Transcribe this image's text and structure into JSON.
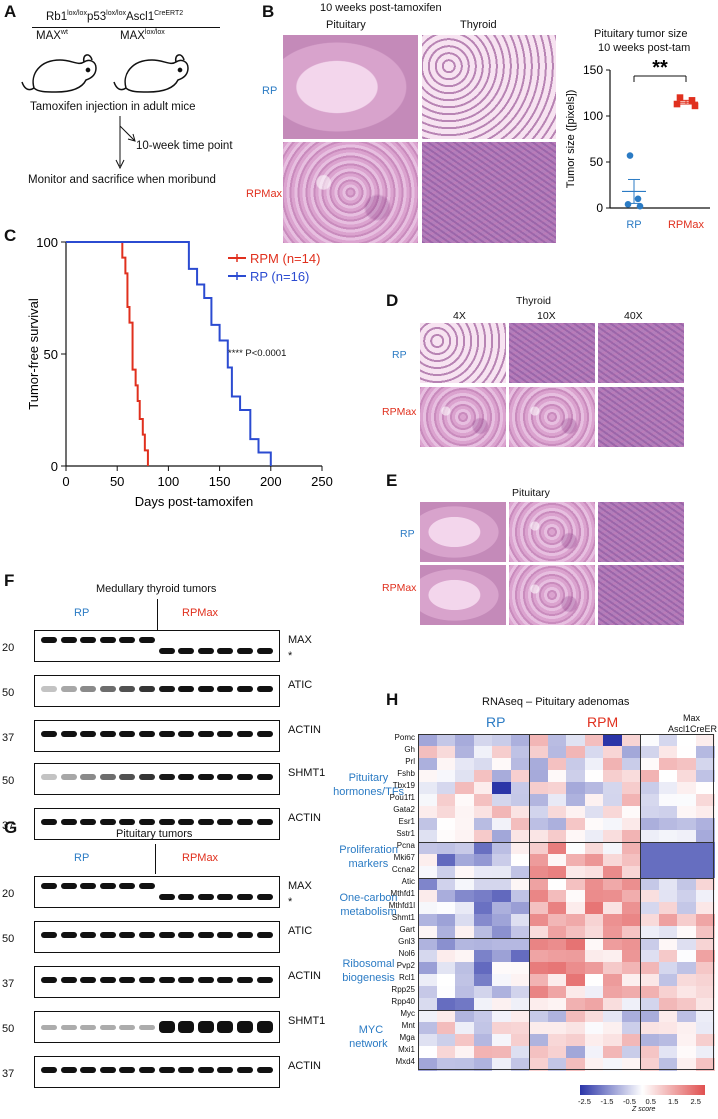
{
  "panel_a": {
    "label": "A",
    "genotype_line1": "Rb1",
    "sup1": "lox/lox",
    "gl_p53": "p53",
    "sup2": "lox/lox",
    "gl_ascl": "Ascl1",
    "sup3": "CreERT2",
    "max_wt": "MAX",
    "max_wt_sup": "wt",
    "max_ll": "MAX",
    "max_ll_sup": "lox/lox",
    "tamoxifen": "Tamoxifen injection in adult mice",
    "timepoint": "10-week time point",
    "monitor": "Monitor and sacrifice when moribund"
  },
  "panel_b": {
    "label": "B",
    "title": "10 weeks post-tamoxifen",
    "col_pituitary": "Pituitary",
    "col_thyroid": "Thyroid",
    "row_rp": "RP",
    "row_rpmax": "RPMax",
    "chart_title_1": "Pituitary tumor size",
    "chart_title_2": "10 weeks post-tam",
    "sig": "**"
  },
  "panel_c": {
    "label": "C",
    "legend_rpm": "RPM (n=14)",
    "legend_rp": "RP (n=16)",
    "pval": "**** P<0.0001"
  },
  "panel_d": {
    "label": "D",
    "title": "Thyroid",
    "mag_4x": "4X",
    "mag_10x": "10X",
    "mag_40x": "40X",
    "row_rp": "RP",
    "row_rpmax": "RPMax"
  },
  "panel_e": {
    "label": "E",
    "title": "Pituitary",
    "row_rp": "RP",
    "row_rpmax": "RPMax"
  },
  "panel_f": {
    "label": "F",
    "title": "Medullary thyroid tumors",
    "rp": "RP",
    "rpmax": "RPMax",
    "blots": [
      "MAX",
      "ATIC",
      "ACTIN",
      "SHMT1",
      "ACTIN"
    ],
    "mw": [
      "20",
      "50",
      "37",
      "50",
      "37"
    ],
    "asterisk": "*"
  },
  "panel_g": {
    "label": "G",
    "title": "Pituitary tumors",
    "rp": "RP",
    "rpmax": "RPMax",
    "blots": [
      "MAX",
      "ATIC",
      "ACTIN",
      "SHMT1",
      "ACTIN"
    ],
    "mw": [
      "20",
      "50",
      "37",
      "50",
      "37"
    ],
    "asterisk": "*"
  },
  "panel_h": {
    "label": "H",
    "title": "RNAseq – Pituitary adenomas",
    "group_rp": "RP",
    "group_rpm": "RPM",
    "group_max_1": "Max",
    "group_max_2": "Ascl1CreER",
    "categories": [
      {
        "l1": "Pituitary",
        "l2": "hormones/TFs"
      },
      {
        "l1": "Proliferation",
        "l2": "markers"
      },
      {
        "l1": "One-carbon",
        "l2": "metabolism"
      },
      {
        "l1": "Ribosomal",
        "l2": "biogenesis"
      },
      {
        "l1": "MYC",
        "l2": "network"
      }
    ],
    "genes": [
      "Pomc",
      "Gh",
      "Prl",
      "Fshb",
      "Tbx19",
      "Pou1f1",
      "Gata2",
      "Esr1",
      "Sstr1",
      "Pcna",
      "Mki67",
      "Ccna2",
      "Atic",
      "Mthfd1",
      "Mthfd1l",
      "Shmt1",
      "Gart",
      "Gnl3",
      "Nol6",
      "Pvp2",
      "Rcl1",
      "Rpp25",
      "Rpp40",
      "Myc",
      "Mnt",
      "Mga",
      "Mxi1",
      "Mxd4"
    ],
    "colorbar_ticks": [
      "-2.5",
      "-1.5",
      "-0.5",
      "0.5",
      "1.5",
      "2.5"
    ],
    "colorbar_label": "Z score",
    "colors": {
      "low": "#2b35a8",
      "mid": "#ffffff",
      "high": "#e05050"
    }
  },
  "chart_data": [
    {
      "type": "scatter",
      "title": "Pituitary tumor size",
      "subtitle": "10 weeks post-tam",
      "ylabel": "Tumor size ([pixels])",
      "ylim": [
        0,
        150
      ],
      "yticks": [
        0,
        50,
        100,
        150
      ],
      "categories": [
        "RP",
        "RPMax"
      ],
      "series": [
        {
          "name": "RP",
          "color": "#2b7bc4",
          "values": [
            57,
            10,
            4,
            2
          ],
          "mean": 18,
          "sem": 13
        },
        {
          "name": "RPMax",
          "color": "#e0301e",
          "values": [
            120,
            117,
            113,
            111
          ],
          "mean": 115,
          "sem": 2
        }
      ]
    },
    {
      "type": "line",
      "subtype": "kaplan-meier",
      "ylabel": "Tumor-free survival",
      "xlabel": "Days post-tamoxifen",
      "xlim": [
        0,
        250
      ],
      "ylim": [
        0,
        100
      ],
      "xticks": [
        0,
        50,
        100,
        150,
        200,
        250
      ],
      "yticks": [
        0,
        50,
        100
      ],
      "series": [
        {
          "name": "RPM (n=14)",
          "color": "#e0301e",
          "x": [
            0,
            55,
            55,
            58,
            58,
            60,
            60,
            62,
            62,
            65,
            65,
            68,
            68,
            70,
            70,
            72,
            72,
            75,
            75,
            77,
            77,
            80,
            80
          ],
          "y": [
            100,
            100,
            93,
            93,
            86,
            86,
            71,
            71,
            64,
            64,
            43,
            43,
            36,
            36,
            29,
            29,
            21,
            21,
            14,
            14,
            7,
            7,
            0
          ]
        },
        {
          "name": "RP (n=16)",
          "color": "#2b4bd1",
          "x": [
            0,
            120,
            120,
            128,
            128,
            135,
            135,
            142,
            142,
            150,
            150,
            158,
            158,
            162,
            162,
            170,
            170,
            180,
            180,
            188,
            188,
            200,
            200
          ],
          "y": [
            100,
            100,
            88,
            88,
            81,
            81,
            75,
            75,
            63,
            63,
            56,
            56,
            44,
            44,
            31,
            31,
            25,
            25,
            12,
            12,
            6,
            6,
            0
          ]
        }
      ]
    }
  ]
}
